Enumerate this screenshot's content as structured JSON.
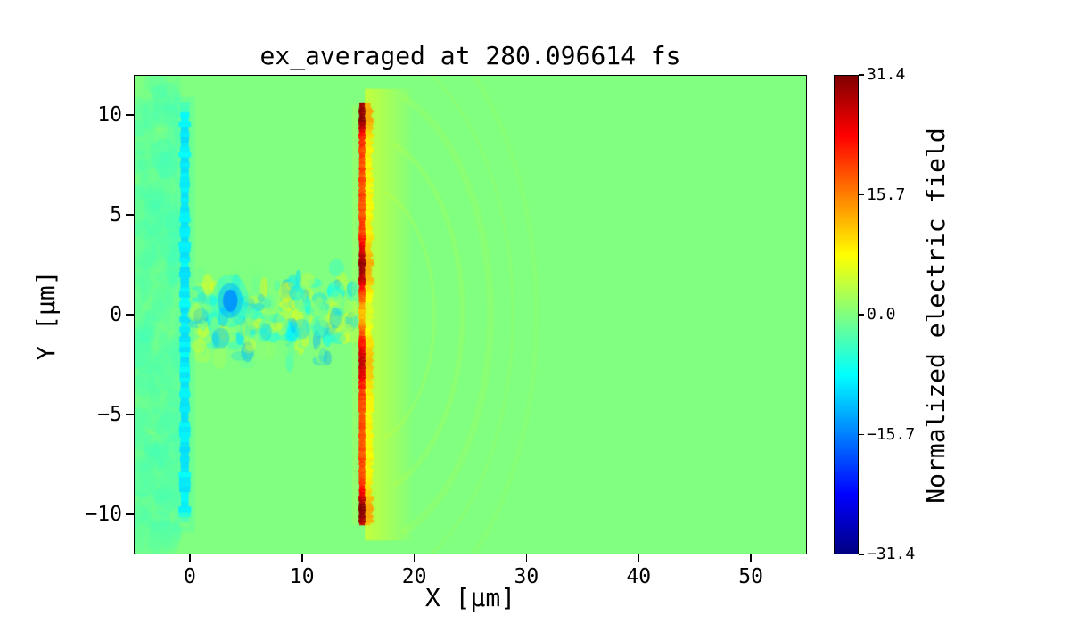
{
  "chart_data": {
    "type": "heatmap",
    "title": "ex_averaged at 280.096614 fs",
    "xlabel": "X [μm]",
    "ylabel": "Y [μm]",
    "xlim": [
      -5,
      55
    ],
    "ylim": [
      -12,
      12
    ],
    "xticks": [
      0,
      10,
      20,
      30,
      40,
      50
    ],
    "xtick_labels": [
      "0",
      "10",
      "20",
      "30",
      "40",
      "50"
    ],
    "yticks": [
      -10,
      -5,
      0,
      5,
      10
    ],
    "ytick_labels": [
      "−10",
      "−5",
      "0",
      "5",
      "10"
    ],
    "grid": false,
    "colormap": "jet",
    "background_color": "#ffffff",
    "colorbar": {
      "label": "Normalized electric field",
      "vmin": -31.4,
      "vmax": 31.4,
      "ticks": [
        31.4,
        15.7,
        0.0,
        -15.7,
        -31.4
      ],
      "tick_labels": [
        "31.4",
        "15.7",
        "0.0",
        "−15.7",
        "−31.4"
      ]
    },
    "features": {
      "background_value": 0.0,
      "preplasma_region": {
        "x_range": [
          -5,
          -0.9
        ],
        "y_range": [
          -11.8,
          11.8
        ],
        "value_range": [
          -5,
          -1
        ],
        "count": 350
      },
      "front_surface_band": {
        "x_center": -0.45,
        "width": 0.9,
        "y_range": [
          -10.6,
          10.6
        ],
        "value": -9
      },
      "channel_speckle": {
        "x_range": [
          0.3,
          14.8
        ],
        "y_range": [
          -3,
          3
        ],
        "value_range": [
          -13,
          9
        ],
        "count": 240
      },
      "cyan_spot": {
        "x": 3.6,
        "y": 0.7,
        "radius": 1.1,
        "value": -15
      },
      "rear_surface_sheath": {
        "x_center": 15.35,
        "core_width": 0.55,
        "y_range": [
          -10.5,
          10.5
        ],
        "base_value": 19,
        "hotspots": [
          {
            "y": 10.0,
            "value": 31.4,
            "sigma": 0.7
          },
          {
            "y": 2.4,
            "value": 30.0,
            "sigma": 0.8
          },
          {
            "y": -2.4,
            "value": 27.0,
            "sigma": 0.8
          },
          {
            "y": -9.9,
            "value": 31.4,
            "sigma": 0.7
          }
        ],
        "center_dip": {
          "y": 0,
          "depth": 7,
          "sigma": 0.6
        },
        "glow": {
          "x_range": [
            15.6,
            20
          ],
          "value": 7
        }
      },
      "wavefront_arcs": {
        "center_x": 15.3,
        "center_y": 0,
        "radii": [
          6.5,
          9,
          11.5,
          13.5,
          15.6
        ],
        "value": 4,
        "alpha": 0.22
      }
    }
  }
}
